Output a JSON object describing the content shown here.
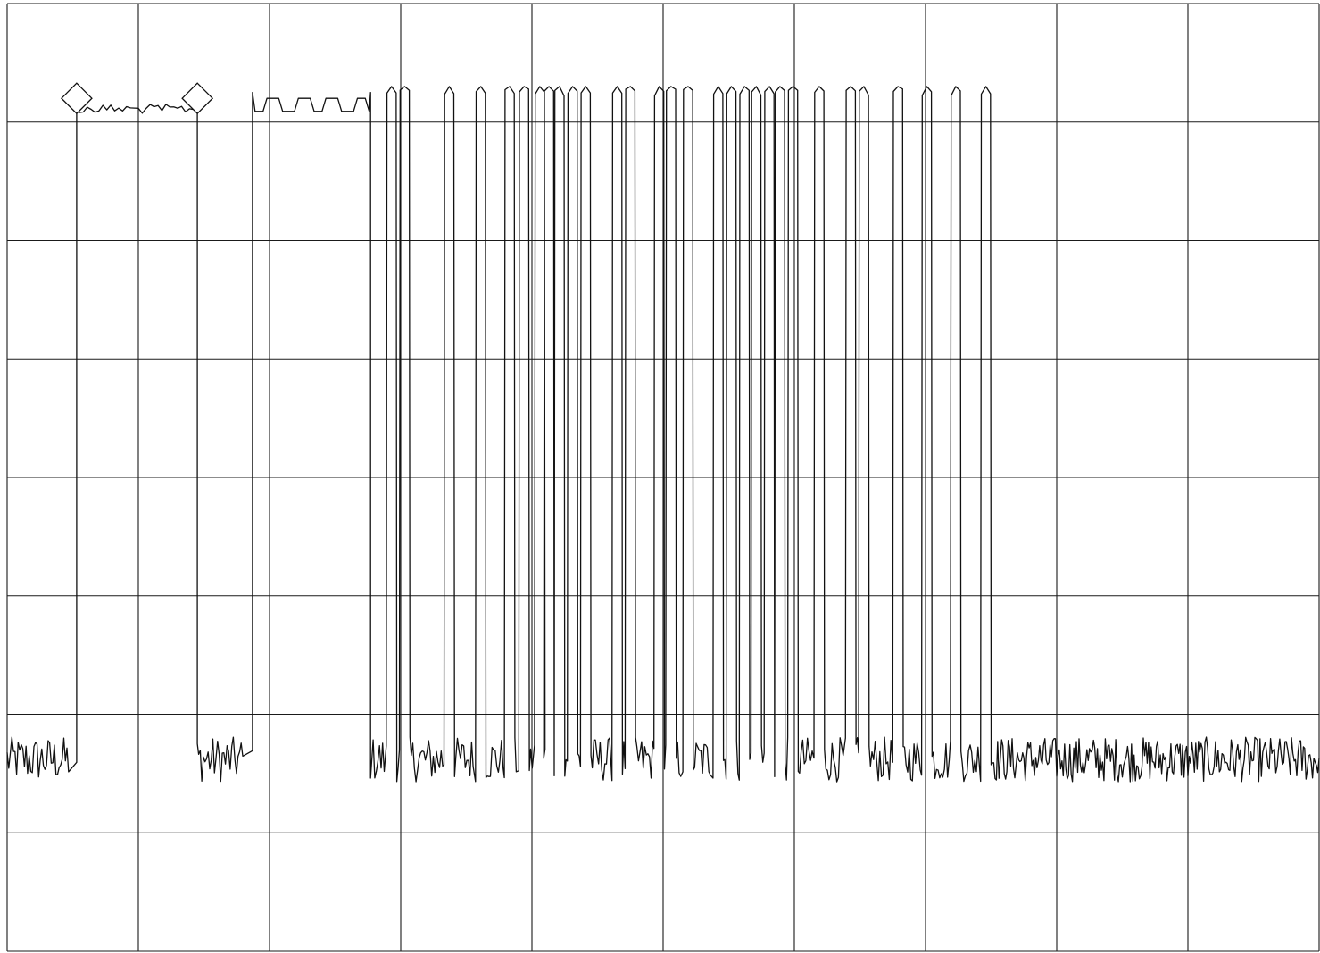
{
  "chart_data": {
    "type": "line",
    "title": "",
    "xlabel": "",
    "ylabel": "",
    "xlim": [
      0,
      10
    ],
    "ylim": [
      0,
      8
    ],
    "grid": true,
    "grid_x_divisions": 10,
    "grid_y_divisions": 8,
    "noise_floor": 1.6,
    "peak_level": 7.25,
    "trace_color": "#111111",
    "grid_color": "#1a1a1a",
    "markers": [
      {
        "name": "marker-1",
        "x": 0.53,
        "y": 7.2
      },
      {
        "name": "marker-2",
        "x": 1.45,
        "y": 7.2
      }
    ],
    "plateaus": [
      {
        "x0": 0.53,
        "x1": 1.45,
        "level": 7.15
      },
      {
        "x0": 1.87,
        "x1": 2.77,
        "level": 7.15
      }
    ],
    "peaks_x": [
      2.93,
      3.03,
      3.37,
      3.61,
      3.83,
      3.94,
      4.06,
      4.13,
      4.21,
      4.31,
      4.41,
      4.65,
      4.75,
      4.97,
      5.06,
      5.19,
      5.42,
      5.52,
      5.62,
      5.71,
      5.81,
      5.89,
      5.99,
      6.19,
      6.43,
      6.53,
      6.79,
      7.01,
      7.23,
      7.46
    ]
  }
}
